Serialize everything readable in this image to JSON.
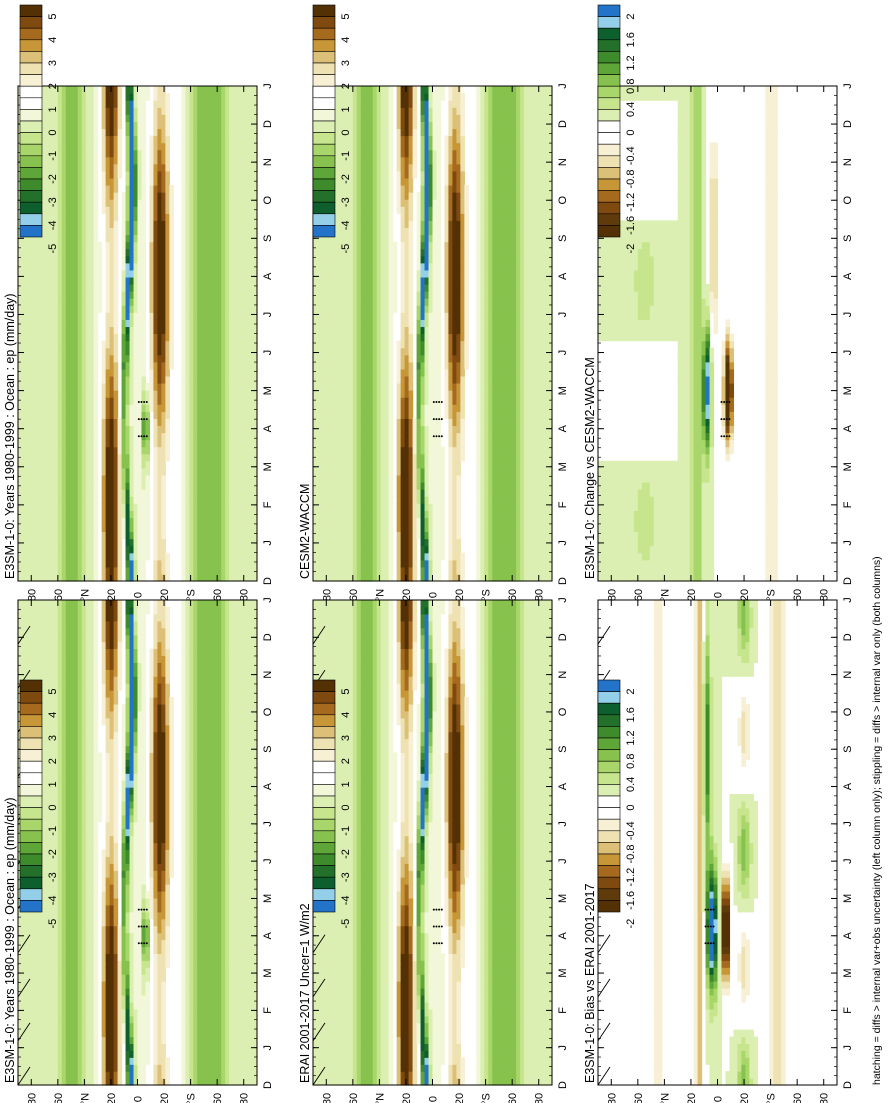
{
  "footnote": "hatching = diffs > internal var+obs uncertainty (left column only); stippling = diffs > internal var only (both columns)",
  "month_labels": [
    "J",
    "F",
    "M",
    "A",
    "M",
    "J",
    "J",
    "A",
    "S",
    "O",
    "N",
    "D",
    "J"
  ],
  "month_axis_first": "D",
  "lat_labels": [
    "80",
    "60",
    "°N",
    "20",
    "0",
    "20",
    "°S",
    "60",
    "80"
  ],
  "colorbars": {
    "field": {
      "labels": [
        "5",
        "4",
        "3",
        "2",
        "1",
        "0",
        "-1",
        "-2",
        "-3",
        "-4",
        "-5"
      ],
      "colors": [
        "#543005",
        "#7f4a10",
        "#a66a1e",
        "#c69637",
        "#dcc078",
        "#efe2b2",
        "#f7f0d4",
        "#ffffff",
        "#ffffff",
        "#f1f7d8",
        "#dcefb2",
        "#c6e58c",
        "#a8d66a",
        "#86c24d",
        "#5fa639",
        "#3e8b2b",
        "#23702a",
        "#0d5f2e",
        "#93cfe8",
        "#2374c8"
      ]
    },
    "diff": {
      "labels": [
        "2",
        "1.6",
        "1.2",
        "0.8",
        "0.4",
        "0",
        "-0.4",
        "-0.8",
        "-1.2",
        "-1.6",
        "-2"
      ],
      "colors": [
        "#2374c8",
        "#93cfe8",
        "#0d5f2e",
        "#23702a",
        "#3e8b2b",
        "#5fa639",
        "#86c24d",
        "#a8d66a",
        "#c6e58c",
        "#dcefb2",
        "#ffffff",
        "#ffffff",
        "#f7f0d4",
        "#efe2b2",
        "#dcc078",
        "#c69637",
        "#a66a1e",
        "#7f4a10",
        "#5f3a0a",
        "#543005"
      ]
    }
  },
  "chart_data": [
    {
      "type": "heatmap",
      "title": "E3SM-1-0: Years 1980-1999 : Ocean : ep (mm/day)",
      "x": [
        "D",
        "J",
        "F",
        "M",
        "A",
        "M",
        "J",
        "J",
        "A",
        "S",
        "O",
        "N",
        "D",
        "J"
      ],
      "y": [
        "80",
        "60",
        "°N",
        "20",
        "0",
        "20",
        "°S",
        "60",
        "80"
      ],
      "scale": [
        -5,
        5
      ],
      "hatching": true,
      "stippling": true
    },
    {
      "type": "heatmap",
      "title": "E3SM-1-0: Years 1980-1999 : Ocean : ep (mm/day)",
      "x": [
        "D",
        "J",
        "F",
        "M",
        "A",
        "M",
        "J",
        "J",
        "A",
        "S",
        "O",
        "N",
        "D",
        "J"
      ],
      "y": [
        "80",
        "60",
        "°N",
        "20",
        "0",
        "20",
        "°S",
        "60",
        "80"
      ],
      "scale": [
        -5,
        5
      ],
      "hatching": false,
      "stippling": true
    },
    {
      "type": "heatmap",
      "title": "ERAI 2001-2017 Uncer=1 W/m2",
      "x": [
        "D",
        "J",
        "F",
        "M",
        "A",
        "M",
        "J",
        "J",
        "A",
        "S",
        "O",
        "N",
        "D",
        "J"
      ],
      "y": [
        "80",
        "60",
        "°N",
        "20",
        "0",
        "20",
        "°S",
        "60",
        "80"
      ],
      "scale": [
        -5,
        5
      ],
      "hatching": true,
      "stippling": true
    },
    {
      "type": "heatmap",
      "title": "CESM2-WACCM",
      "x": [
        "D",
        "J",
        "F",
        "M",
        "A",
        "M",
        "J",
        "J",
        "A",
        "S",
        "O",
        "N",
        "D",
        "J"
      ],
      "y": [
        "80",
        "60",
        "°N",
        "20",
        "0",
        "20",
        "°S",
        "60",
        "80"
      ],
      "scale": [
        -5,
        5
      ],
      "hatching": false,
      "stippling": true
    },
    {
      "type": "heatmap",
      "title": "E3SM-1-0: Bias vs ERAI 2001-2017",
      "x": [
        "D",
        "J",
        "F",
        "M",
        "A",
        "M",
        "J",
        "J",
        "A",
        "S",
        "O",
        "N",
        "D",
        "J"
      ],
      "y": [
        "80",
        "60",
        "°N",
        "20",
        "0",
        "20",
        "°S",
        "60",
        "80"
      ],
      "scale": [
        -2,
        2
      ],
      "hatching": true,
      "stippling": true
    },
    {
      "type": "heatmap",
      "title": "E3SM-1-0: Change vs CESM2-WACCM",
      "x": [
        "D",
        "J",
        "F",
        "M",
        "A",
        "M",
        "J",
        "J",
        "A",
        "S",
        "O",
        "N",
        "D",
        "J"
      ],
      "y": [
        "80",
        "60",
        "°N",
        "20",
        "0",
        "20",
        "°S",
        "60",
        "80"
      ],
      "scale": [
        -2,
        2
      ],
      "hatching": false,
      "stippling": true
    }
  ]
}
